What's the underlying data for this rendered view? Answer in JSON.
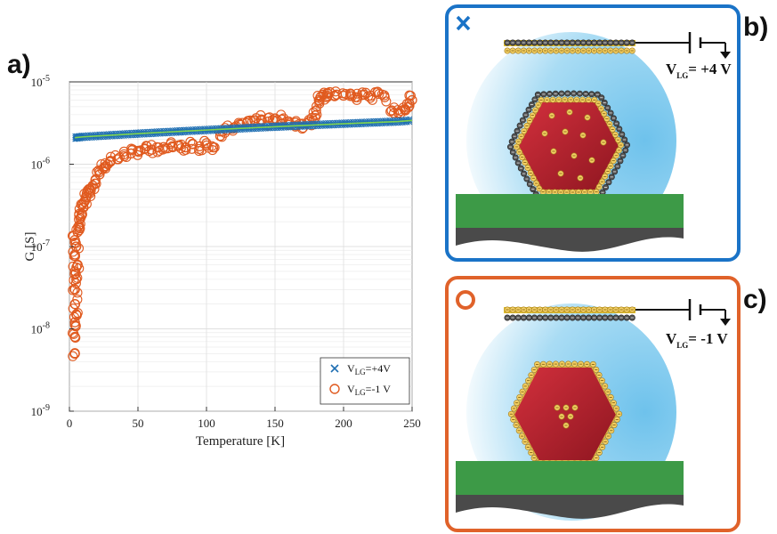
{
  "panels": {
    "a": "a)",
    "b": "b)",
    "c": "c)"
  },
  "colors": {
    "series_pos": "#1f6fb2",
    "series_neg": "#e05a1f",
    "fit_line": "#7fd34e",
    "panel_b_border": "#1a73c7",
    "panel_c_border": "#e0622a",
    "nanocrystal": "#b61f2a",
    "substrate": "#3d9a47",
    "base": "#4a4a4a",
    "gate_gold": "#e2c12f"
  },
  "panel_b": {
    "marker": "x",
    "voltage_main": "V",
    "voltage_sub": "LG",
    "voltage_value": "= +4 V"
  },
  "panel_c": {
    "marker": "o",
    "voltage_main": "V",
    "voltage_sub": "LG",
    "voltage_value": "= -1 V"
  },
  "chart_data": {
    "type": "scatter",
    "title": "",
    "xlabel": "Temperature [K]",
    "ylabel": "G [S]",
    "xlim": [
      0,
      250
    ],
    "ylim": [
      1e-09,
      1e-05
    ],
    "yscale": "log",
    "grid": true,
    "legend_position": "bottom-right",
    "x_ticks": [
      "0",
      "50",
      "100",
      "150",
      "200",
      "250"
    ],
    "y_ticks": [
      "10",
      "10",
      "10",
      "10",
      "10"
    ],
    "y_tick_exponents": [
      "-9",
      "-8",
      "-7",
      "-6",
      "-5"
    ],
    "series": [
      {
        "name": "VLG=+4V",
        "legend_main": "V",
        "legend_sub": "LG",
        "legend_rest": "=+4V",
        "marker": "x",
        "x": [
          4,
          10,
          20,
          30,
          40,
          50,
          60,
          70,
          80,
          90,
          100,
          110,
          120,
          130,
          140,
          150,
          160,
          170,
          180,
          190,
          200,
          210,
          220,
          230,
          240,
          250
        ],
        "y": [
          2.1e-06,
          2.15e-06,
          2.2e-06,
          2.25e-06,
          2.3e-06,
          2.35e-06,
          2.4e-06,
          2.45e-06,
          2.5e-06,
          2.55e-06,
          2.6e-06,
          2.65e-06,
          2.7e-06,
          2.75e-06,
          2.8e-06,
          2.85e-06,
          2.9e-06,
          2.95e-06,
          3e-06,
          3.05e-06,
          3.1e-06,
          3.15e-06,
          3.2e-06,
          3.25e-06,
          3.3e-06,
          3.4e-06
        ]
      },
      {
        "name": "VLG=-1 V",
        "legend_main": "V",
        "legend_sub": "LG",
        "legend_rest": "=-1 V",
        "marker": "o",
        "x": [
          4,
          4,
          4,
          4,
          4,
          4,
          4,
          4,
          5,
          5,
          5,
          6,
          6,
          7,
          8,
          9,
          10,
          11,
          12,
          14,
          15,
          17,
          19,
          22,
          25,
          28,
          30,
          35,
          40,
          45,
          50,
          55,
          60,
          65,
          70,
          75,
          80,
          85,
          90,
          95,
          100,
          105,
          110,
          115,
          120,
          125,
          130,
          135,
          140,
          145,
          150,
          155,
          160,
          165,
          170,
          175,
          178,
          180,
          182,
          185,
          188,
          190,
          195,
          200,
          205,
          210,
          215,
          220,
          225,
          230,
          235,
          240,
          245,
          248,
          250
        ],
        "y": [
          5e-09,
          8e-09,
          1.2e-08,
          2e-08,
          3e-08,
          5e-08,
          8e-08,
          1.2e-07,
          1.5e-08,
          4e-08,
          1e-07,
          6e-08,
          1.5e-07,
          1.8e-07,
          2.2e-07,
          2.5e-07,
          3e-07,
          3.5e-07,
          4e-07,
          4.5e-07,
          5e-07,
          5.5e-07,
          6.5e-07,
          7.5e-07,
          9e-07,
          1e-06,
          1.1e-06,
          1.15e-06,
          1.25e-06,
          1.35e-06,
          1.45e-06,
          1.55e-06,
          1.5e-06,
          1.6e-06,
          1.55e-06,
          1.65e-06,
          1.7e-06,
          1.6e-06,
          1.75e-06,
          1.65e-06,
          1.8e-06,
          1.6e-06,
          2.2e-06,
          2.6e-06,
          2.8e-06,
          3e-06,
          3.3e-06,
          3.4e-06,
          3.5e-06,
          3.3e-06,
          3.6e-06,
          3.5e-06,
          3.3e-06,
          3.2e-06,
          3.1e-06,
          3.3e-06,
          3.4e-06,
          4.5e-06,
          6e-06,
          7e-06,
          6.5e-06,
          7.5e-06,
          7e-06,
          6.8e-06,
          7.2e-06,
          6.5e-06,
          7e-06,
          6.8e-06,
          7.5e-06,
          6.5e-06,
          4.5e-06,
          4.2e-06,
          4.5e-06,
          5.5e-06,
          6e-06
        ]
      }
    ]
  }
}
